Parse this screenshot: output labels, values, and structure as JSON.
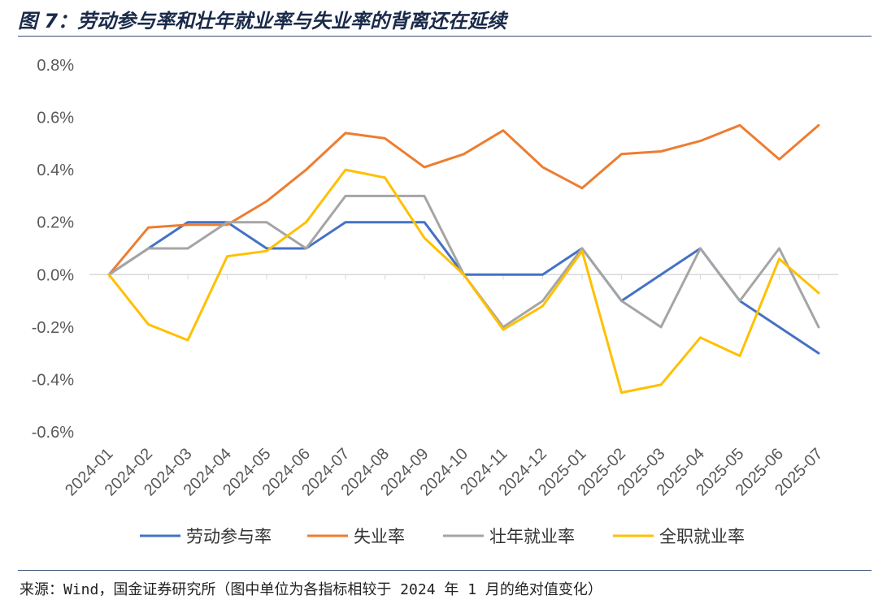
{
  "header": {
    "title": "图 7：劳动参与率和壮年就业率与失业率的背离还在延续"
  },
  "footer": {
    "source": "来源：Wind，国金证券研究所（图中单位为各指标相较于 2024 年 1 月的绝对值变化）"
  },
  "chart_data": {
    "type": "line",
    "title": "",
    "xlabel": "",
    "ylabel": "",
    "ylim": [
      -0.6,
      0.8
    ],
    "yticks": [
      0.8,
      0.6,
      0.4,
      0.2,
      0.0,
      -0.2,
      -0.4,
      -0.6
    ],
    "ytick_labels": [
      "0.8%",
      "0.6%",
      "0.4%",
      "0.2%",
      "0.0%",
      "-0.2%",
      "-0.4%",
      "-0.6%"
    ],
    "grid": false,
    "legend_position": "bottom",
    "categories": [
      "2024-01",
      "2024-02",
      "2024-03",
      "2024-04",
      "2024-05",
      "2024-06",
      "2024-07",
      "2024-08",
      "2024-09",
      "2024-10",
      "2024-11",
      "2024-12",
      "2025-01",
      "2025-02",
      "2025-03",
      "2025-04",
      "2025-05",
      "2025-06",
      "2025-07"
    ],
    "series": [
      {
        "name": "劳动参与率",
        "color": "#4472c4",
        "values": [
          0.0,
          0.1,
          0.2,
          0.2,
          0.1,
          0.1,
          0.2,
          0.2,
          0.2,
          0.0,
          0.0,
          0.0,
          0.1,
          -0.1,
          0.0,
          0.1,
          -0.1,
          -0.2,
          -0.3
        ]
      },
      {
        "name": "失业率",
        "color": "#ed7d31",
        "values": [
          0.0,
          0.18,
          0.19,
          0.19,
          0.28,
          0.4,
          0.54,
          0.52,
          0.41,
          0.46,
          0.55,
          0.41,
          0.33,
          0.46,
          0.47,
          0.51,
          0.57,
          0.44,
          0.57
        ]
      },
      {
        "name": "壮年就业率",
        "color": "#a5a5a5",
        "values": [
          0.0,
          0.1,
          0.1,
          0.2,
          0.2,
          0.1,
          0.3,
          0.3,
          0.3,
          0.0,
          -0.2,
          -0.1,
          0.1,
          -0.1,
          -0.2,
          0.1,
          -0.1,
          0.1,
          -0.2
        ]
      },
      {
        "name": "全职就业率",
        "color": "#ffc000",
        "values": [
          0.0,
          -0.19,
          -0.25,
          0.07,
          0.09,
          0.2,
          0.4,
          0.37,
          0.14,
          0.0,
          -0.21,
          -0.12,
          0.09,
          -0.45,
          -0.42,
          -0.24,
          -0.31,
          0.06,
          -0.07
        ]
      }
    ]
  }
}
